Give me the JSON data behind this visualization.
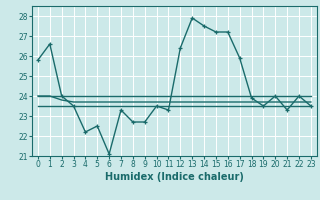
{
  "xlabel": "Humidex (Indice chaleur)",
  "xlim": [
    -0.5,
    23.5
  ],
  "ylim": [
    21,
    28.5
  ],
  "yticks": [
    21,
    22,
    23,
    24,
    25,
    26,
    27,
    28
  ],
  "xticks": [
    0,
    1,
    2,
    3,
    4,
    5,
    6,
    7,
    8,
    9,
    10,
    11,
    12,
    13,
    14,
    15,
    16,
    17,
    18,
    19,
    20,
    21,
    22,
    23
  ],
  "bg_color": "#cce9e9",
  "grid_color": "#ffffff",
  "line_color": "#1a6b6b",
  "series": [
    [
      25.8,
      26.6,
      24.0,
      23.5,
      22.2,
      22.5,
      21.1,
      23.3,
      22.7,
      22.7,
      23.5,
      23.3,
      26.4,
      27.9,
      27.5,
      27.2,
      27.2,
      25.9,
      23.9,
      23.5,
      24.0,
      23.3,
      24.0,
      23.5
    ],
    [
      24.0,
      24.0,
      24.0,
      24.0,
      24.0,
      24.0,
      24.0,
      24.0,
      24.0,
      24.0,
      24.0,
      24.0,
      24.0,
      24.0,
      24.0,
      24.0,
      24.0,
      24.0,
      24.0,
      24.0,
      24.0,
      24.0,
      24.0,
      24.0
    ],
    [
      24.0,
      24.0,
      23.8,
      23.7,
      23.7,
      23.7,
      23.7,
      23.7,
      23.7,
      23.7,
      23.7,
      23.7,
      23.7,
      23.7,
      23.7,
      23.7,
      23.7,
      23.7,
      23.7,
      23.7,
      23.7,
      23.7,
      23.7,
      23.7
    ],
    [
      23.5,
      23.5,
      23.5,
      23.5,
      23.5,
      23.5,
      23.5,
      23.5,
      23.5,
      23.5,
      23.5,
      23.5,
      23.5,
      23.5,
      23.5,
      23.5,
      23.5,
      23.5,
      23.5,
      23.5,
      23.5,
      23.5,
      23.5,
      23.5
    ]
  ],
  "markers": [
    true,
    false,
    false,
    false
  ]
}
